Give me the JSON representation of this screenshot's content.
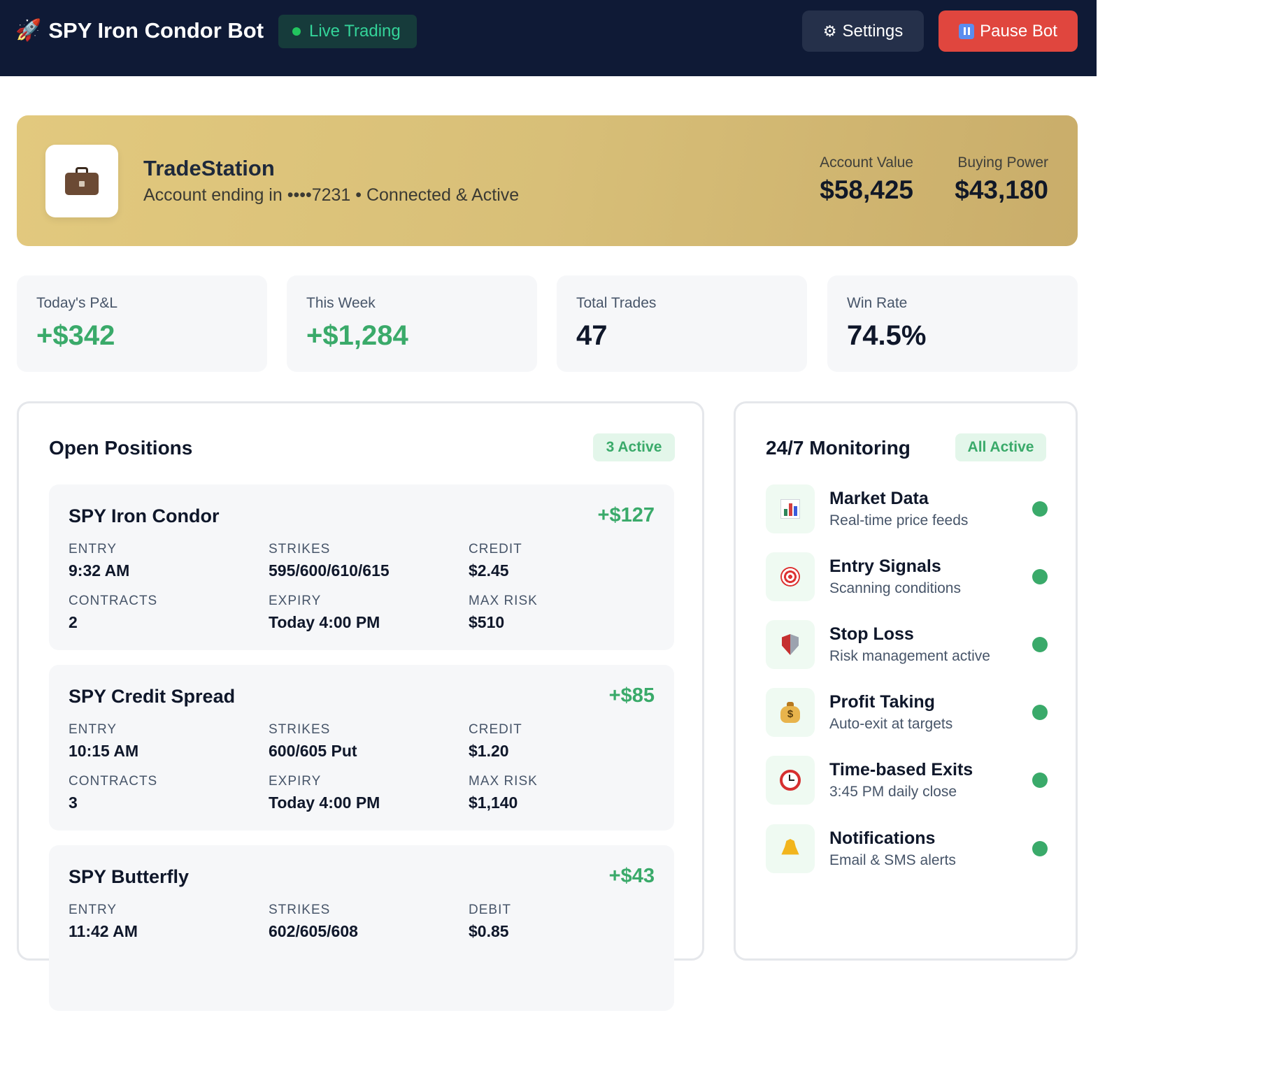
{
  "header": {
    "title": "SPY Iron Condor Bot",
    "status": "Live Trading",
    "settings_label": "Settings",
    "pause_label": "Pause Bot"
  },
  "account": {
    "broker": "TradeStation",
    "subtitle": "Account ending in ••••7231 • Connected & Active",
    "account_value_label": "Account Value",
    "account_value": "$58,425",
    "buying_power_label": "Buying Power",
    "buying_power": "$43,180"
  },
  "stats": [
    {
      "label": "Today's P&L",
      "value": "+$342"
    },
    {
      "label": "This Week",
      "value": "+$1,284"
    },
    {
      "label": "Total Trades",
      "value": "47"
    },
    {
      "label": "Win Rate",
      "value": "74.5%"
    }
  ],
  "positions": {
    "title": "Open Positions",
    "badge": "3 Active",
    "items": [
      {
        "name": "SPY Iron Condor",
        "pnl": "+$127",
        "fields": [
          {
            "k": "ENTRY",
            "v": "9:32 AM"
          },
          {
            "k": "STRIKES",
            "v": "595/600/610/615"
          },
          {
            "k": "CREDIT",
            "v": "$2.45"
          },
          {
            "k": "CONTRACTS",
            "v": "2"
          },
          {
            "k": "EXPIRY",
            "v": "Today 4:00 PM"
          },
          {
            "k": "MAX RISK",
            "v": "$510"
          }
        ]
      },
      {
        "name": "SPY Credit Spread",
        "pnl": "+$85",
        "fields": [
          {
            "k": "ENTRY",
            "v": "10:15 AM"
          },
          {
            "k": "STRIKES",
            "v": "600/605 Put"
          },
          {
            "k": "CREDIT",
            "v": "$1.20"
          },
          {
            "k": "CONTRACTS",
            "v": "3"
          },
          {
            "k": "EXPIRY",
            "v": "Today 4:00 PM"
          },
          {
            "k": "MAX RISK",
            "v": "$1,140"
          }
        ]
      },
      {
        "name": "SPY Butterfly",
        "pnl": "+$43",
        "fields": [
          {
            "k": "ENTRY",
            "v": "11:42 AM"
          },
          {
            "k": "STRIKES",
            "v": "602/605/608"
          },
          {
            "k": "DEBIT",
            "v": "$0.85"
          }
        ]
      }
    ]
  },
  "monitoring": {
    "title": "24/7 Monitoring",
    "badge": "All Active",
    "items": [
      {
        "icon": "bar-chart-icon",
        "title": "Market Data",
        "subtitle": "Real-time price feeds"
      },
      {
        "icon": "target-icon",
        "title": "Entry Signals",
        "subtitle": "Scanning conditions"
      },
      {
        "icon": "shield-icon",
        "title": "Stop Loss",
        "subtitle": "Risk management active"
      },
      {
        "icon": "money-bag-icon",
        "title": "Profit Taking",
        "subtitle": "Auto-exit at targets"
      },
      {
        "icon": "alarm-clock-icon",
        "title": "Time-based Exits",
        "subtitle": "3:45 PM daily close"
      },
      {
        "icon": "bell-icon",
        "title": "Notifications",
        "subtitle": "Email & SMS alerts"
      }
    ]
  },
  "colors": {
    "header_bg": "#0f1a36",
    "profit_green": "#3aaa6a",
    "pause_red": "#e0463e",
    "account_gold": "#d8bf78"
  }
}
